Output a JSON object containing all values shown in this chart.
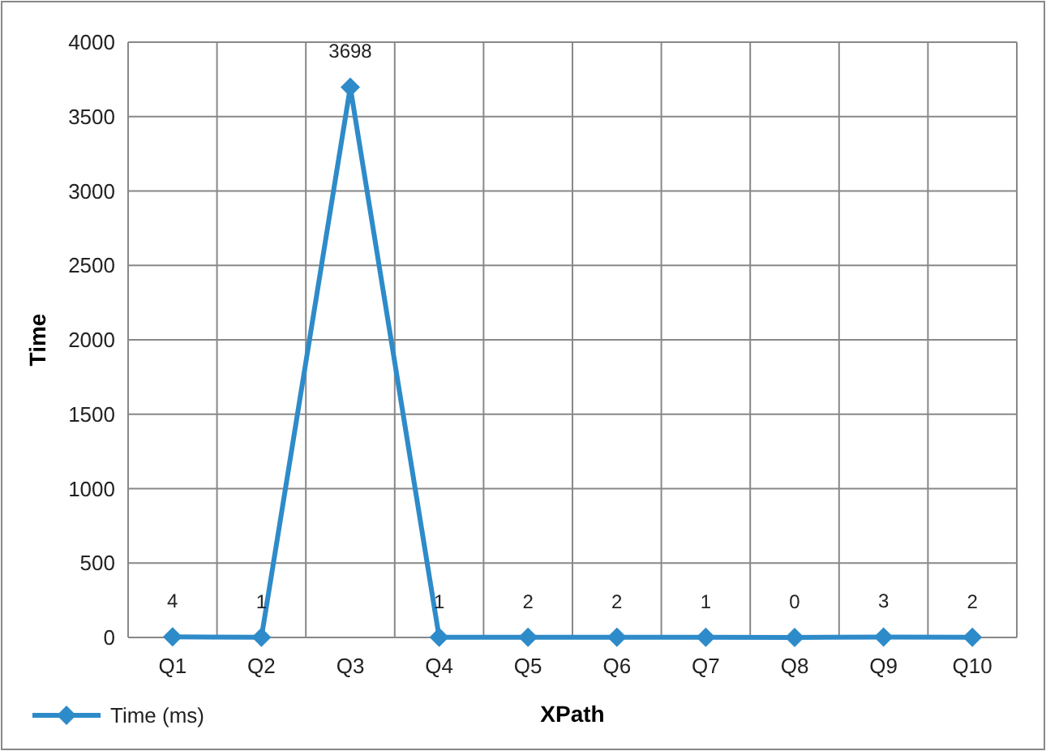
{
  "chart_data": {
    "type": "line",
    "xlabel": "XPath",
    "ylabel": "Time",
    "categories": [
      "Q1",
      "Q2",
      "Q3",
      "Q4",
      "Q5",
      "Q6",
      "Q7",
      "Q8",
      "Q9",
      "Q10"
    ],
    "series": [
      {
        "name": "Time (ms)",
        "color": "#2e8bc9",
        "values": [
          4,
          1,
          3698,
          1,
          2,
          2,
          1,
          0,
          3,
          2
        ]
      }
    ],
    "ylim": [
      0,
      4000
    ],
    "yticks": [
      0,
      500,
      1000,
      1500,
      2000,
      2500,
      3000,
      3500,
      4000
    ],
    "grid": true,
    "legend": "bottom left",
    "marker": "diamond",
    "line_style": "solid",
    "data_labels": true
  }
}
